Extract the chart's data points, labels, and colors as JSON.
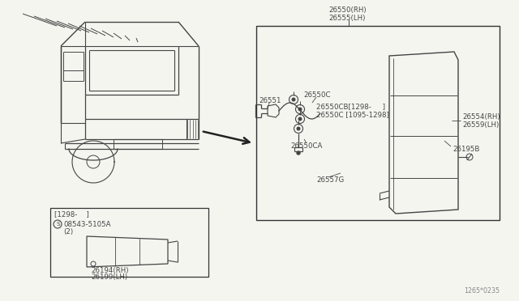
{
  "bg_color": "#f5f5f0",
  "line_color": "#444444",
  "text_color": "#444444",
  "diagram_number": "1265*0235",
  "labels": {
    "main_assembly": [
      "26550(RH)",
      "26555(LH)"
    ],
    "part1": "26551",
    "part2": "26550C",
    "part3a": "26550CB[1298-     ]",
    "part3b": "26550C [1095-1298]",
    "part4a": "26554(RH)",
    "part4b": "26559(LH)",
    "part5": "26550CA",
    "part6": "26557G",
    "part7": "26195B",
    "inset_header": "[1298-    ]",
    "inset_s": "S",
    "inset_part1": "08543-5105A",
    "inset_part1b": "(2)",
    "inset_part2a": "26194(RH)",
    "inset_part2b": "26199(LH)"
  }
}
